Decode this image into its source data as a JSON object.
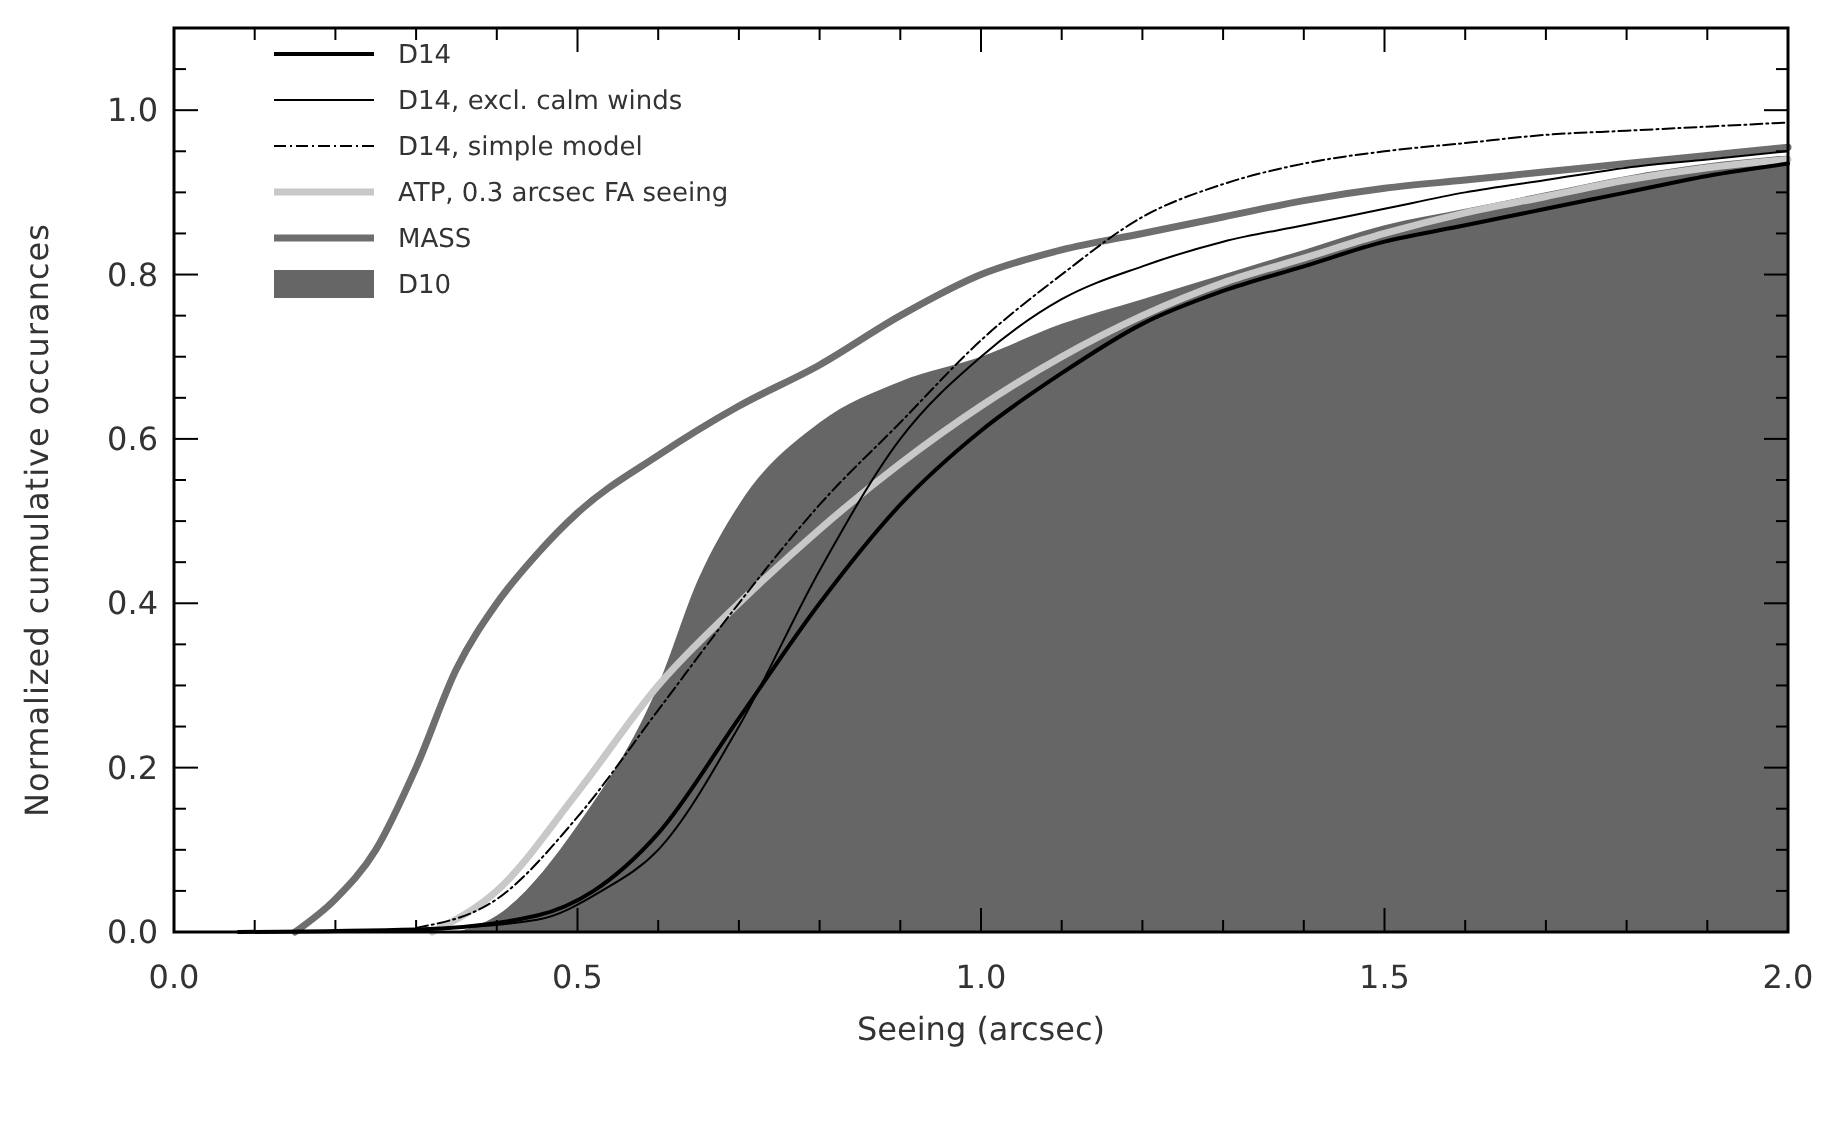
{
  "chart_data": {
    "type": "line",
    "xlabel": "Seeing (arcsec)",
    "ylabel": "Normalized cumulative occurances",
    "xlim": [
      0,
      2
    ],
    "ylim": [
      0,
      1.1
    ],
    "xticks": [
      {
        "value": 0,
        "label": "0.0"
      },
      {
        "value": 0.1,
        "label": null
      },
      {
        "value": 0.2,
        "label": null
      },
      {
        "value": 0.3,
        "label": null
      },
      {
        "value": 0.4,
        "label": null
      },
      {
        "value": 0.5,
        "label": "0.5"
      },
      {
        "value": 0.6,
        "label": null
      },
      {
        "value": 0.7,
        "label": null
      },
      {
        "value": 0.8,
        "label": null
      },
      {
        "value": 0.9,
        "label": null
      },
      {
        "value": 1,
        "label": "1.0"
      },
      {
        "value": 1.1,
        "label": null
      },
      {
        "value": 1.2,
        "label": null
      },
      {
        "value": 1.3,
        "label": null
      },
      {
        "value": 1.4,
        "label": null
      },
      {
        "value": 1.5,
        "label": "1.5"
      },
      {
        "value": 1.6,
        "label": null
      },
      {
        "value": 1.7,
        "label": null
      },
      {
        "value": 1.8,
        "label": null
      },
      {
        "value": 1.9,
        "label": null
      },
      {
        "value": 2,
        "label": "2.0"
      }
    ],
    "yticks": [
      {
        "value": 0,
        "label": "0.0"
      },
      {
        "value": 0.05,
        "label": null
      },
      {
        "value": 0.1,
        "label": null
      },
      {
        "value": 0.15,
        "label": null
      },
      {
        "value": 0.2,
        "label": "0.2"
      },
      {
        "value": 0.25,
        "label": null
      },
      {
        "value": 0.3,
        "label": null
      },
      {
        "value": 0.35,
        "label": null
      },
      {
        "value": 0.4,
        "label": "0.4"
      },
      {
        "value": 0.45,
        "label": null
      },
      {
        "value": 0.5,
        "label": null
      },
      {
        "value": 0.55,
        "label": null
      },
      {
        "value": 0.6,
        "label": "0.6"
      },
      {
        "value": 0.65,
        "label": null
      },
      {
        "value": 0.7,
        "label": null
      },
      {
        "value": 0.75,
        "label": null
      },
      {
        "value": 0.8,
        "label": "0.8"
      },
      {
        "value": 0.85,
        "label": null
      },
      {
        "value": 0.9,
        "label": null
      },
      {
        "value": 0.95,
        "label": null
      },
      {
        "value": 1,
        "label": "1.0"
      },
      {
        "value": 1.05,
        "label": null
      }
    ],
    "grid": false,
    "legend": "top left",
    "marker": "none",
    "series": [
      {
        "name": "D10",
        "type": "area",
        "color": "#666666",
        "x": [
          0.35,
          0.4,
          0.5,
          0.6,
          0.65,
          0.7,
          0.8,
          0.9,
          1.0,
          1.1,
          1.2,
          1.3,
          1.4,
          1.5,
          1.6,
          1.7,
          1.8,
          1.9,
          2.0
        ],
        "values": [
          0,
          0.02,
          0.13,
          0.3,
          0.43,
          0.52,
          0.62,
          0.67,
          0.7,
          0.74,
          0.77,
          0.8,
          0.83,
          0.86,
          0.88,
          0.9,
          0.92,
          0.935,
          0.945
        ]
      },
      {
        "name": "MASS",
        "color": "#6e6e6e",
        "x": [
          0.15,
          0.2,
          0.25,
          0.3,
          0.35,
          0.4,
          0.45,
          0.5,
          0.6,
          0.7,
          0.8,
          0.9,
          1.0,
          1.1,
          1.2,
          1.3,
          1.4,
          1.5,
          1.6,
          1.7,
          1.8,
          1.9,
          2.0
        ],
        "values": [
          0,
          0.04,
          0.1,
          0.2,
          0.32,
          0.4,
          0.46,
          0.51,
          0.58,
          0.64,
          0.69,
          0.75,
          0.8,
          0.83,
          0.85,
          0.87,
          0.89,
          0.905,
          0.915,
          0.925,
          0.935,
          0.945,
          0.955
        ]
      },
      {
        "name": "ATP, 0.3 arcsec FA seeing",
        "color": "#c8c8c8",
        "x": [
          0.32,
          0.4,
          0.5,
          0.6,
          0.7,
          0.8,
          0.9,
          1.0,
          1.1,
          1.2,
          1.3,
          1.4,
          1.5,
          1.6,
          1.7,
          1.8,
          1.9,
          2.0
        ],
        "values": [
          0,
          0.05,
          0.17,
          0.3,
          0.4,
          0.49,
          0.57,
          0.64,
          0.7,
          0.75,
          0.79,
          0.82,
          0.85,
          0.875,
          0.895,
          0.915,
          0.93,
          0.94
        ]
      },
      {
        "name": "D14, simple model",
        "color": "#000000",
        "line_style": "dashdot",
        "x": [
          0.3,
          0.4,
          0.5,
          0.6,
          0.7,
          0.8,
          0.9,
          1.0,
          1.1,
          1.2,
          1.3,
          1.4,
          1.5,
          1.6,
          1.7,
          1.8,
          2.0
        ],
        "values": [
          0.005,
          0.04,
          0.14,
          0.27,
          0.4,
          0.52,
          0.62,
          0.72,
          0.8,
          0.87,
          0.91,
          0.935,
          0.95,
          0.96,
          0.97,
          0.975,
          0.985
        ]
      },
      {
        "name": "D14, excl. calm winds",
        "color": "#000000",
        "x": [
          0.3,
          0.45,
          0.53,
          0.6,
          0.7,
          0.8,
          0.9,
          1.0,
          1.1,
          1.2,
          1.3,
          1.4,
          1.5,
          1.6,
          1.7,
          1.8,
          1.9,
          2.0
        ],
        "values": [
          0.003,
          0.015,
          0.05,
          0.1,
          0.25,
          0.44,
          0.6,
          0.7,
          0.77,
          0.81,
          0.84,
          0.86,
          0.88,
          0.9,
          0.915,
          0.93,
          0.94,
          0.95
        ]
      },
      {
        "name": "D14",
        "color": "#000000",
        "x": [
          0.08,
          0.3,
          0.45,
          0.52,
          0.6,
          0.7,
          0.8,
          0.9,
          1.0,
          1.1,
          1.2,
          1.3,
          1.4,
          1.5,
          1.6,
          1.7,
          1.8,
          1.9,
          2.0
        ],
        "values": [
          0,
          0.003,
          0.02,
          0.05,
          0.12,
          0.26,
          0.4,
          0.52,
          0.61,
          0.68,
          0.74,
          0.78,
          0.81,
          0.84,
          0.86,
          0.88,
          0.9,
          0.92,
          0.935
        ]
      }
    ]
  }
}
